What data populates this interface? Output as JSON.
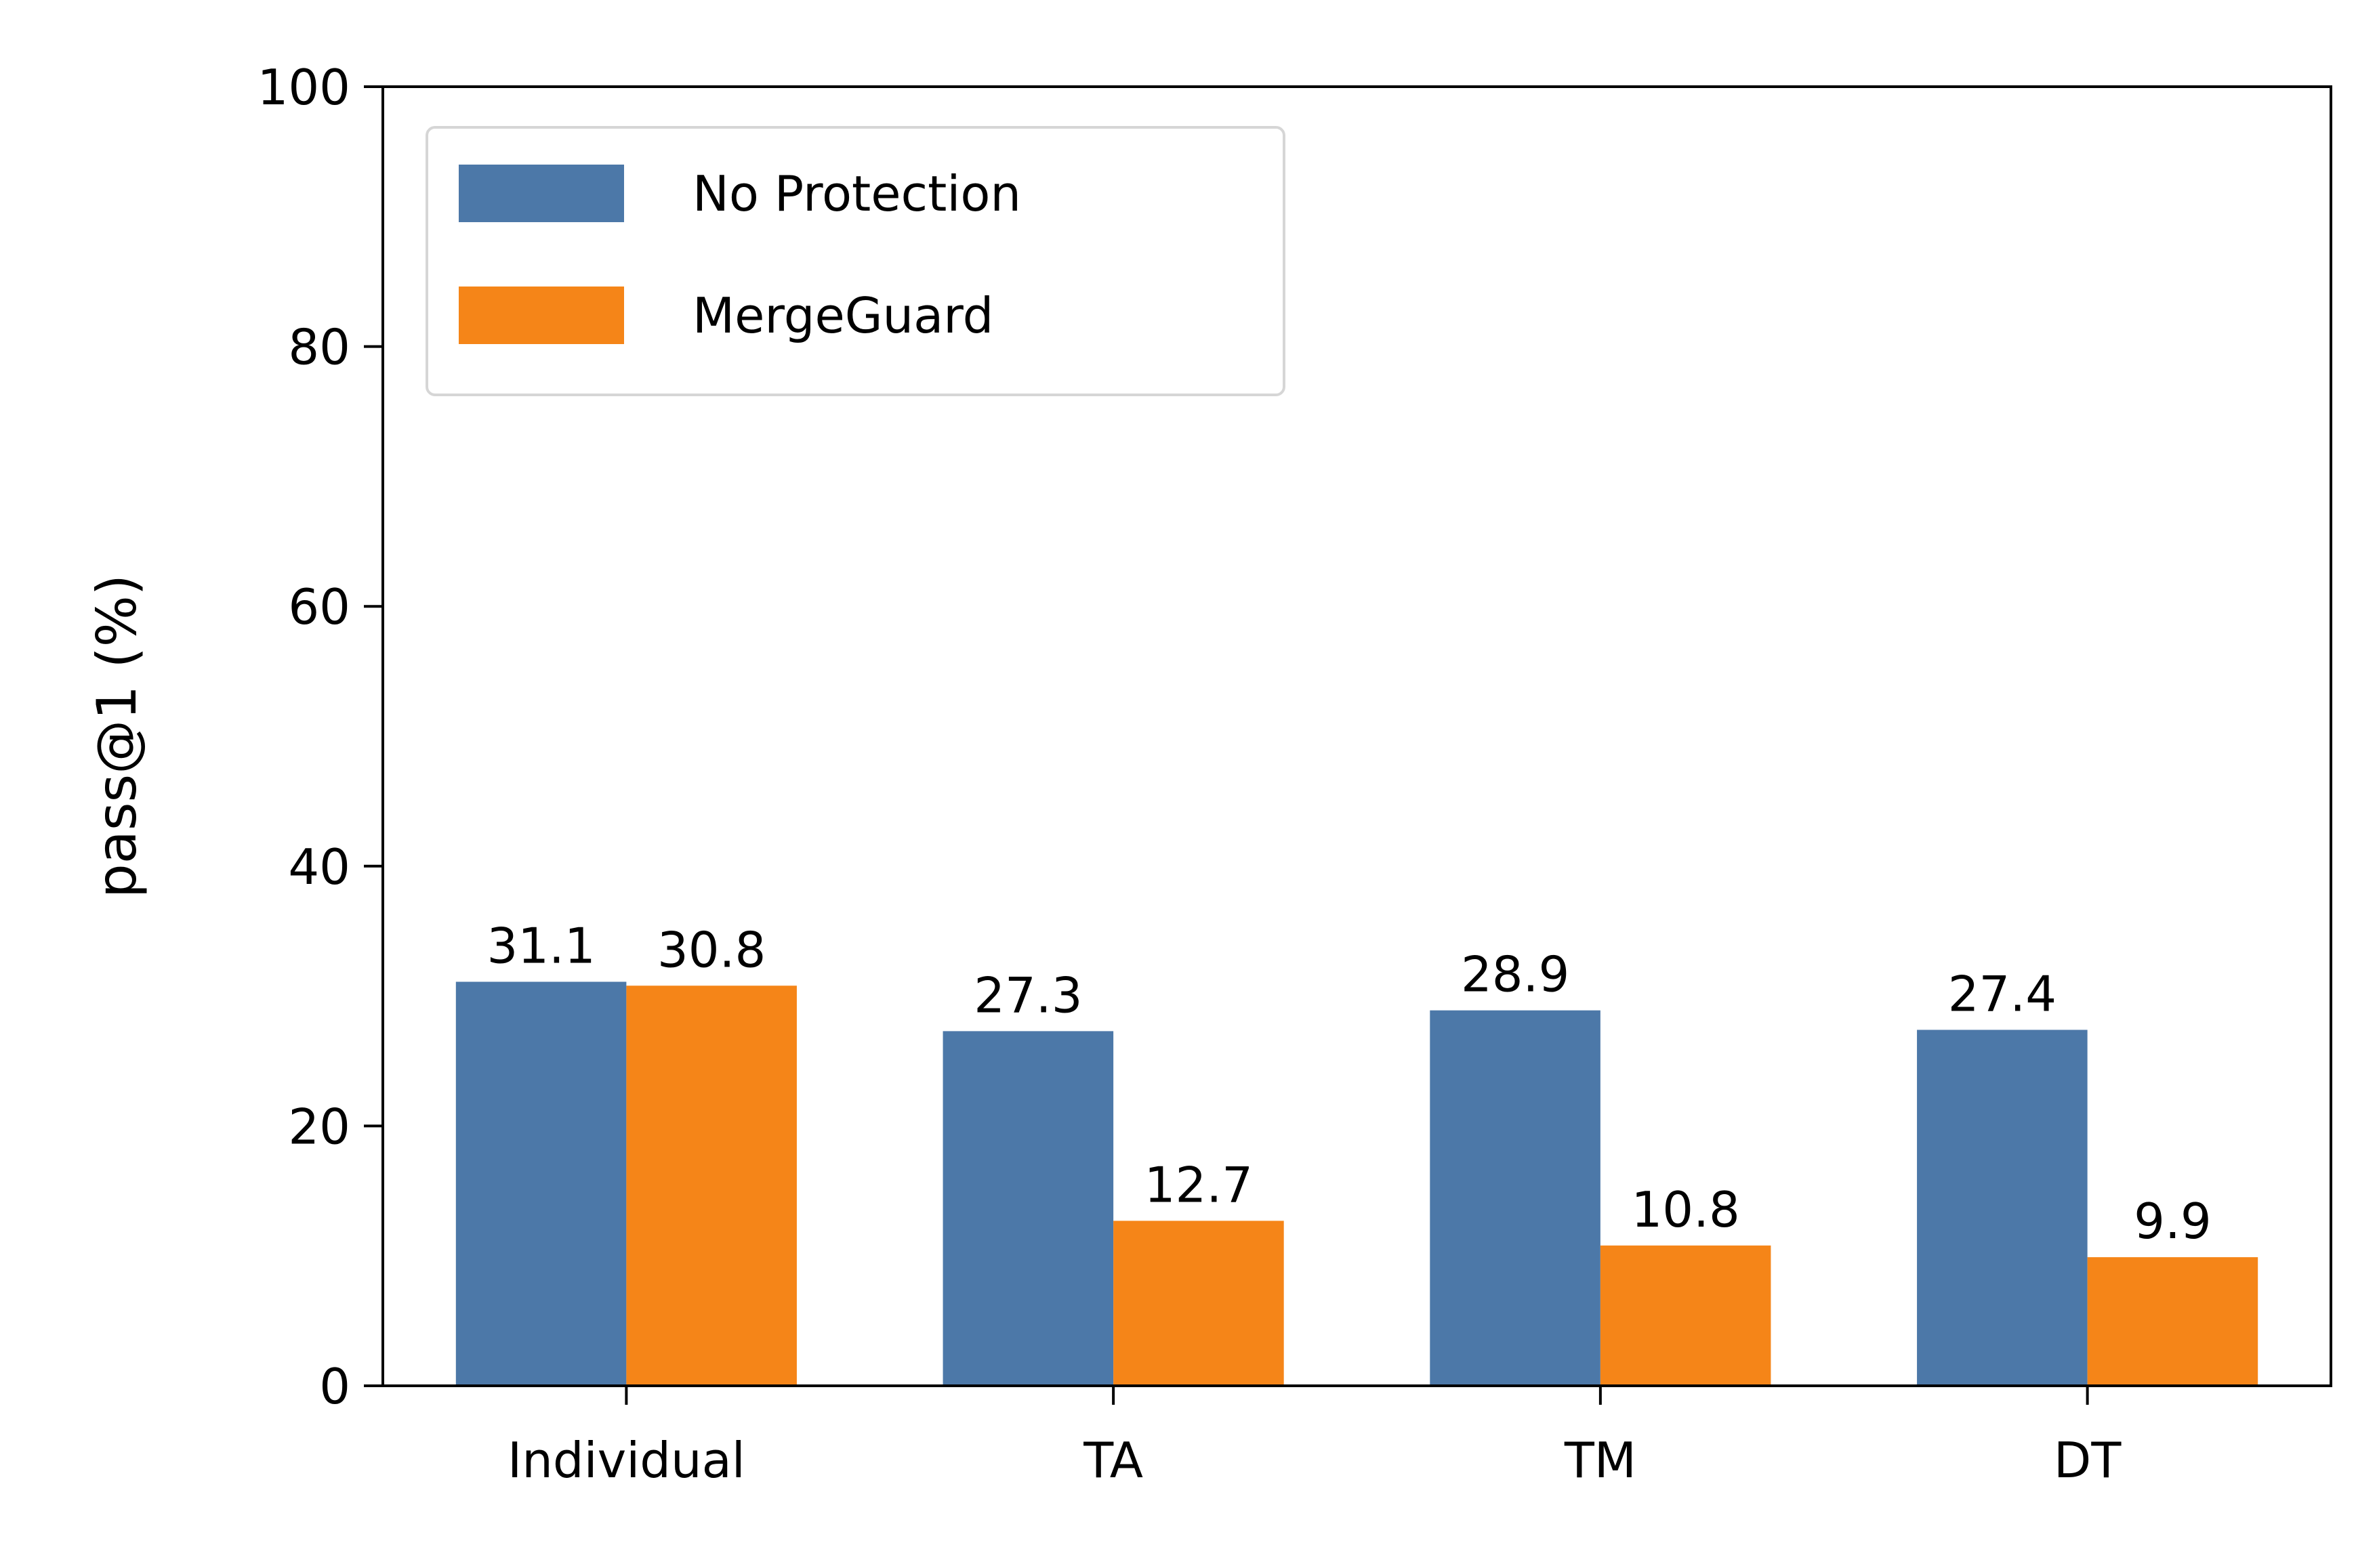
{
  "chart_data": {
    "type": "bar",
    "categories": [
      "Individual",
      "TA",
      "TM",
      "DT"
    ],
    "series": [
      {
        "name": "No Protection",
        "color": "#4c78a8",
        "values": [
          31.1,
          27.3,
          28.9,
          27.4
        ]
      },
      {
        "name": "MergeGuard",
        "color": "#f58518",
        "values": [
          30.8,
          12.7,
          10.8,
          9.9
        ]
      }
    ],
    "title": "",
    "xlabel": "",
    "ylabel": "pass@1 (%)",
    "ylim": [
      0,
      100
    ],
    "yticks": [
      0,
      20,
      40,
      60,
      80,
      100
    ],
    "grid": false,
    "legend_position": "top-left"
  }
}
